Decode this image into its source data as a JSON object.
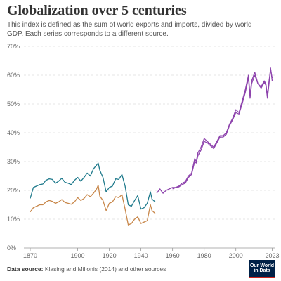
{
  "header": {
    "title": "Globalization over 5 centuries",
    "subtitle": "This index is defined as the sum of world exports and imports, divided by world GDP. Each series corresponds to a different source."
  },
  "footer": {
    "source_label": "Data source:",
    "source_text": "Klasing and Milionis (2014) and other sources",
    "logo_line1": "Our World",
    "logo_line2": "in Data"
  },
  "colors": {
    "teal": "#1f7a8c",
    "orange": "#c8874a",
    "purple": "#8e44ad",
    "grid": "#dddddd",
    "axis": "#999999"
  },
  "chart_data": {
    "type": "line",
    "title": "Globalization over 5 centuries",
    "xlabel": "",
    "ylabel": "",
    "xlim": [
      1866,
      2025
    ],
    "ylim": [
      0,
      70
    ],
    "x_ticks": [
      1870,
      1900,
      1920,
      1940,
      1960,
      1980,
      2000,
      2023
    ],
    "x_tick_labels": [
      "1870",
      "1900",
      "1920",
      "1940",
      "1960",
      "1980",
      "2000",
      "2023"
    ],
    "y_ticks": [
      0,
      10,
      20,
      30,
      40,
      50,
      60,
      70
    ],
    "y_tick_labels": [
      "0%",
      "10%",
      "20%",
      "30%",
      "40%",
      "50%",
      "60%",
      "70%"
    ],
    "grid": true,
    "series": [
      {
        "color": "#1f7a8c",
        "x": [
          1870,
          1872,
          1874,
          1876,
          1878,
          1880,
          1882,
          1884,
          1886,
          1888,
          1890,
          1892,
          1894,
          1896,
          1898,
          1900,
          1902,
          1904,
          1906,
          1908,
          1910,
          1912,
          1913,
          1914,
          1916,
          1918,
          1920,
          1922,
          1924,
          1926,
          1928,
          1930,
          1932,
          1934,
          1936,
          1938,
          1940,
          1942,
          1944,
          1946,
          1947,
          1948,
          1949
        ],
        "values": [
          17.2,
          21,
          21.5,
          22,
          22.2,
          23.5,
          24,
          23.8,
          22.5,
          23.2,
          24.2,
          22.8,
          22.5,
          22,
          23.5,
          24.5,
          23.2,
          24.5,
          26,
          25,
          27.5,
          28.8,
          29.5,
          27,
          24.5,
          19.5,
          21,
          21.5,
          24,
          23.8,
          25.5,
          21.5,
          15,
          14.5,
          16.5,
          18.2,
          13.5,
          14,
          15.5,
          19.5,
          17,
          16.5,
          16
        ]
      },
      {
        "color": "#c8874a",
        "x": [
          1870,
          1872,
          1874,
          1876,
          1878,
          1880,
          1882,
          1884,
          1886,
          1888,
          1890,
          1892,
          1894,
          1896,
          1898,
          1900,
          1902,
          1904,
          1906,
          1908,
          1910,
          1912,
          1913,
          1914,
          1916,
          1918,
          1920,
          1922,
          1924,
          1926,
          1928,
          1930,
          1932,
          1934,
          1936,
          1938,
          1940,
          1942,
          1944,
          1946,
          1947,
          1948,
          1949
        ],
        "values": [
          12.5,
          14,
          14.5,
          15,
          15,
          16,
          16.5,
          16.2,
          15.5,
          16,
          16.8,
          15.8,
          15.5,
          15.2,
          16,
          17.5,
          16.5,
          17.2,
          18.5,
          17.8,
          19,
          20.5,
          21.8,
          18,
          16.5,
          13,
          15.5,
          16,
          17.8,
          17.5,
          18.5,
          13.5,
          8,
          8.5,
          10,
          10.8,
          8.5,
          9,
          9.5,
          15,
          13,
          12.5,
          12
        ]
      },
      {
        "color": "#8e44ad",
        "x": [
          1950,
          1952,
          1954,
          1956,
          1958,
          1960,
          1962,
          1964,
          1966,
          1968,
          1970,
          1972,
          1974,
          1975,
          1976,
          1978,
          1980,
          1982,
          1984,
          1986,
          1988,
          1990,
          1992,
          1994,
          1996,
          1998,
          2000,
          2002,
          2004,
          2006,
          2008,
          2009,
          2010,
          2012,
          2014,
          2016,
          2018,
          2019,
          2020,
          2021,
          2022,
          2023
        ],
        "values": [
          19,
          20.5,
          19,
          20,
          20.5,
          21,
          21,
          21.5,
          22.5,
          23,
          25,
          26,
          31,
          30,
          33,
          35,
          38,
          37,
          36,
          35,
          37,
          39,
          39,
          40,
          43,
          45,
          48,
          47,
          51,
          55,
          60,
          53,
          58,
          61,
          57,
          56,
          58,
          57,
          53,
          58,
          62,
          59
        ]
      },
      {
        "color": "#8e44ad",
        "x": [
          1960,
          1962,
          1964,
          1966,
          1968,
          1970,
          1972,
          1974,
          1975,
          1976,
          1978,
          1980,
          1982,
          1984,
          1986,
          1988,
          1990,
          1992,
          1994,
          1996,
          1998,
          2000,
          2002,
          2004,
          2006,
          2008,
          2009,
          2010,
          2012,
          2014,
          2016,
          2018,
          2019,
          2020,
          2021,
          2022,
          2023
        ],
        "values": [
          20.5,
          21,
          21.2,
          22,
          22.5,
          24.5,
          25.5,
          30,
          29.5,
          32,
          34,
          37,
          36.5,
          35.5,
          34.5,
          36.5,
          38.5,
          38.5,
          39.5,
          42.5,
          44.5,
          47,
          46.5,
          50,
          54,
          59,
          52,
          57,
          60,
          57,
          55.5,
          57.5,
          56.5,
          52,
          57,
          62.5,
          58
        ]
      }
    ]
  }
}
